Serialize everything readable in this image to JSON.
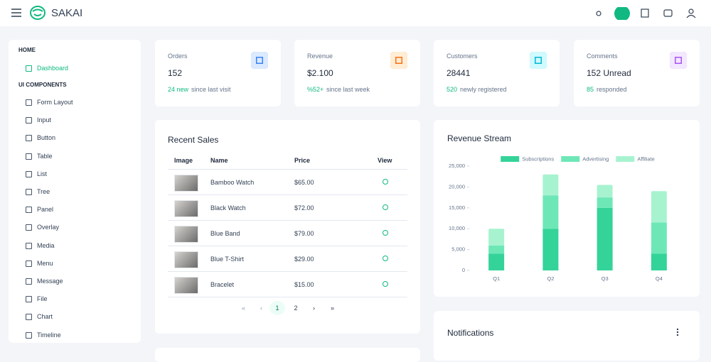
{
  "header": {
    "brand": "SAKAI"
  },
  "sidebar": {
    "sections": [
      {
        "title": "HOME",
        "items": [
          "Dashboard"
        ]
      },
      {
        "title": "UI COMPONENTS",
        "items": [
          "Form Layout",
          "Input",
          "Button",
          "Table",
          "List",
          "Tree",
          "Panel",
          "Overlay",
          "Media",
          "Menu",
          "Message",
          "File",
          "Chart",
          "Timeline"
        ]
      }
    ]
  },
  "stats": [
    {
      "label": "Orders",
      "value": "152",
      "highlight": "24 new",
      "note": "since last visit"
    },
    {
      "label": "Revenue",
      "value": "$2.100",
      "highlight": "%52+",
      "note": "since last week"
    },
    {
      "label": "Customers",
      "value": "28441",
      "highlight": "520",
      "note": "newly registered"
    },
    {
      "label": "Comments",
      "value": "152 Unread",
      "highlight": "85",
      "note": "responded"
    }
  ],
  "recent_sales": {
    "title": "Recent Sales",
    "columns": [
      "Image",
      "Name",
      "Price",
      "View"
    ],
    "rows": [
      [
        "Bamboo Watch",
        "$65.00"
      ],
      [
        "Black Watch",
        "$72.00"
      ],
      [
        "Blue Band",
        "$79.00"
      ],
      [
        "Blue T-Shirt",
        "$29.00"
      ],
      [
        "Bracelet",
        "$15.00"
      ]
    ],
    "pages": [
      "1",
      "2"
    ]
  },
  "chart_data": {
    "type": "bar",
    "stacked": true,
    "title": "Revenue Stream",
    "categories": [
      "Q1",
      "Q2",
      "Q3",
      "Q4"
    ],
    "series": [
      {
        "name": "Subscriptions",
        "color": "#34d399",
        "values": [
          4000,
          10000,
          15000,
          4000
        ]
      },
      {
        "name": "Advertising",
        "color": "#6ee7b7",
        "values": [
          2000,
          8000,
          2500,
          7500
        ]
      },
      {
        "name": "Affiliate",
        "color": "#a7f3d0",
        "values": [
          4000,
          5000,
          3000,
          7500
        ]
      }
    ],
    "ylim": [
      0,
      25000
    ],
    "yticks": [
      0,
      {
        "value": 5000,
        "label": "5,000"
      },
      {
        "value": 10000,
        "label": "10,000"
      },
      {
        "value": 15000,
        "label": "15,000"
      },
      {
        "value": 20000,
        "label": "20,000"
      },
      {
        "value": 25000,
        "label": "25,000"
      }
    ],
    "grid": false,
    "legend": "top"
  },
  "notifications": {
    "title": "Notifications"
  }
}
